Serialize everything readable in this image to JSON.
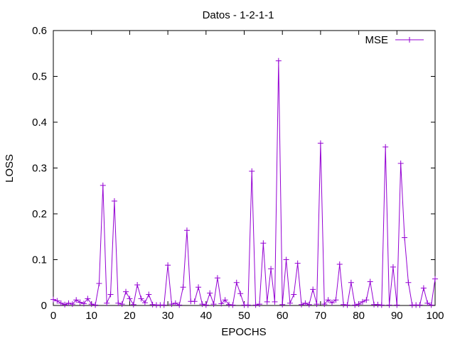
{
  "chart_data": {
    "type": "line",
    "title": "Datos - 1-2-1-1",
    "xlabel": "EPOCHS",
    "ylabel": "LOSS",
    "xlim": [
      0,
      100
    ],
    "ylim": [
      0,
      0.6
    ],
    "xticks": [
      "0",
      "10",
      "20",
      "30",
      "40",
      "50",
      "60",
      "70",
      "80",
      "90",
      "100"
    ],
    "yticks": [
      "0",
      "0.1",
      "0.2",
      "0.3",
      "0.4",
      "0.5",
      "0.6"
    ],
    "grid": false,
    "legend_position": "top-right",
    "series": [
      {
        "name": "MSE",
        "color": "#9400d3",
        "marker": "plus",
        "x": [
          0,
          1,
          2,
          3,
          4,
          5,
          6,
          7,
          8,
          9,
          10,
          11,
          12,
          13,
          14,
          15,
          16,
          17,
          18,
          19,
          20,
          21,
          22,
          23,
          24,
          25,
          26,
          27,
          28,
          29,
          30,
          31,
          32,
          33,
          34,
          35,
          36,
          37,
          38,
          39,
          40,
          41,
          42,
          43,
          44,
          45,
          46,
          47,
          48,
          49,
          50,
          51,
          52,
          53,
          54,
          55,
          56,
          57,
          58,
          59,
          60,
          61,
          62,
          63,
          64,
          65,
          66,
          67,
          68,
          69,
          70,
          71,
          72,
          73,
          74,
          75,
          76,
          77,
          78,
          79,
          80,
          81,
          82,
          83,
          84,
          85,
          86,
          87,
          88,
          89,
          90,
          91,
          92,
          93,
          94,
          95,
          96,
          97,
          98,
          99,
          100
        ],
        "values": [
          0.013,
          0.01,
          0.005,
          0.002,
          0.005,
          0.003,
          0.012,
          0.007,
          0.004,
          0.015,
          0.003,
          0.001,
          0.048,
          0.262,
          0.005,
          0.024,
          0.228,
          0.005,
          0.003,
          0.03,
          0.015,
          0.002,
          0.045,
          0.015,
          0.006,
          0.024,
          0.002,
          0.001,
          0.001,
          0.001,
          0.088,
          0.003,
          0.005,
          0.001,
          0.04,
          0.164,
          0.009,
          0.009,
          0.04,
          0.003,
          0.001,
          0.027,
          0.003,
          0.06,
          0.004,
          0.012,
          0.002,
          0.001,
          0.05,
          0.026,
          0.001,
          0.001,
          0.293,
          0.001,
          0.003,
          0.136,
          0.008,
          0.08,
          0.008,
          0.534,
          0.002,
          0.1,
          0.005,
          0.024,
          0.092,
          0.002,
          0.005,
          0.002,
          0.035,
          0.003,
          0.354,
          0.003,
          0.012,
          0.006,
          0.012,
          0.09,
          0.002,
          0.001,
          0.05,
          0.001,
          0.003,
          0.008,
          0.012,
          0.052,
          0.002,
          0.002,
          0.001,
          0.346,
          0.001,
          0.084,
          0.001,
          0.31,
          0.148,
          0.05,
          0.001,
          0.001,
          0.001,
          0.038,
          0.005,
          0.001,
          0.058
        ]
      }
    ]
  }
}
